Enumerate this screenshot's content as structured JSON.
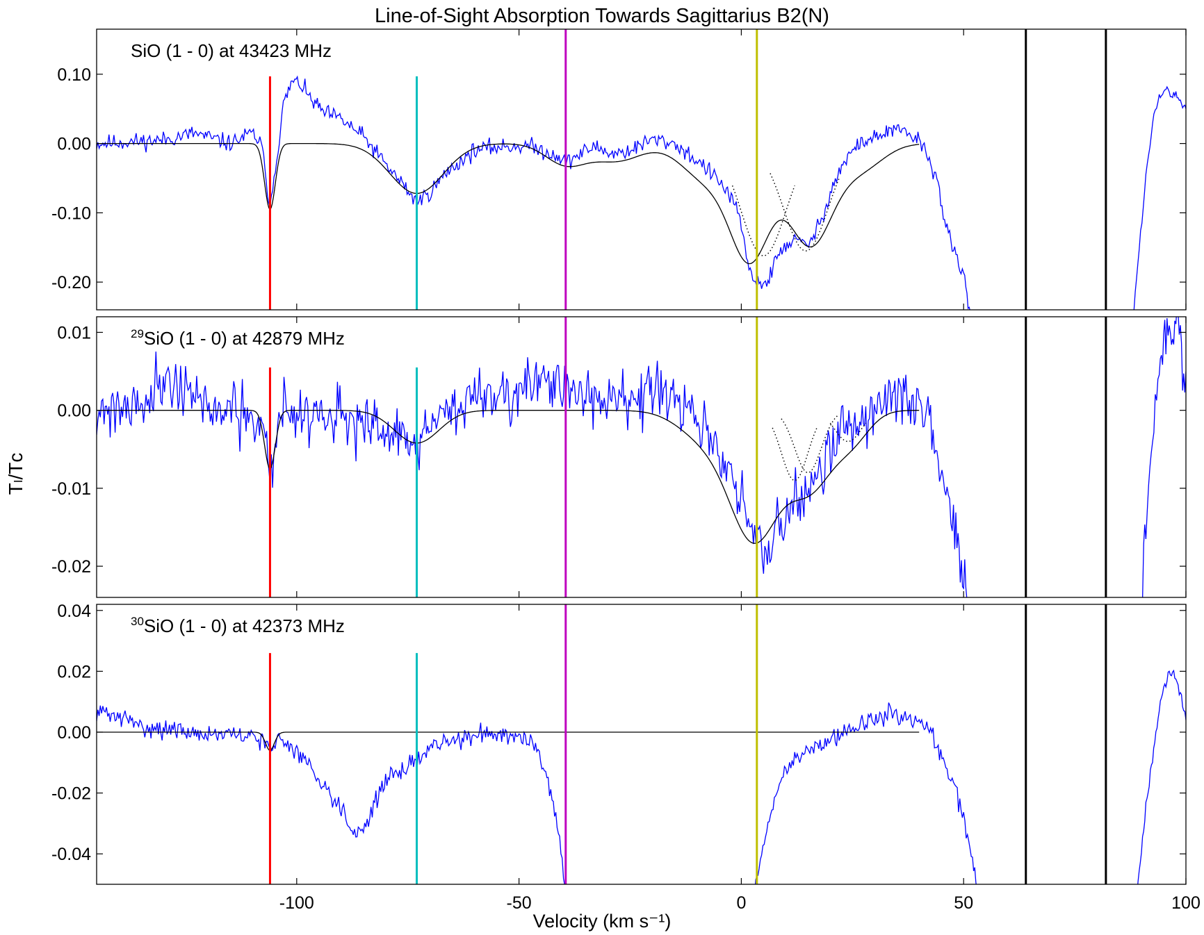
{
  "title": "Line-of-Sight Absorption Towards Sagittarius B2(N)",
  "xlabel": "Velocity (km s⁻¹)",
  "ylabel": "Tₗ/Tᴄ",
  "colors": {
    "spectrum": "#0000ff",
    "fit": "#000000",
    "components": "#000000",
    "marker_red": "#ff0000",
    "marker_cyan": "#00bfbf",
    "marker_magenta": "#bf00bf",
    "marker_yellow": "#bfbf00",
    "marker_black": "#000000"
  },
  "chart_data": {
    "type": "line",
    "xlim": [
      -145,
      100
    ],
    "x_ticks": [
      -100,
      -50,
      0,
      50,
      100
    ],
    "x_tick_labels": [
      "-100",
      "-50",
      "0",
      "50",
      "100"
    ],
    "markers": [
      {
        "x": -106,
        "color": "#ff0000",
        "full_height": false
      },
      {
        "x": -73,
        "color": "#00bfbf",
        "full_height": false
      },
      {
        "x": -39.5,
        "color": "#bf00bf",
        "full_height": true
      },
      {
        "x": 3.5,
        "color": "#bfbf00",
        "full_height": true
      },
      {
        "x": 64,
        "color": "#000000",
        "full_height": true
      },
      {
        "x": 82,
        "color": "#000000",
        "full_height": true
      }
    ],
    "panels": [
      {
        "label": "SiO (1 - 0) at 43423 MHz",
        "ylim": [
          -0.24,
          0.165
        ],
        "y_ticks": [
          0.1,
          0.0,
          -0.1,
          -0.2
        ],
        "y_tick_labels": [
          "0.10",
          "0.00",
          "-0.10",
          "-0.20"
        ],
        "marker_top": 0.097,
        "fit_components": [
          {
            "amp": -0.095,
            "center": -106.0,
            "sigma": 1.2
          },
          {
            "amp": -0.072,
            "center": -73.0,
            "sigma": 6.0
          },
          {
            "amp": -0.03,
            "center": -39.5,
            "sigma": 4.5
          },
          {
            "amp": -0.025,
            "center": -28.0,
            "sigma": 5.5
          },
          {
            "amp": -0.05,
            "center": -8.0,
            "sigma": 5.5
          },
          {
            "amp": -0.16,
            "center": 2.0,
            "sigma": 4.5
          },
          {
            "amp": -0.145,
            "center": 15.5,
            "sigma": 5.0
          },
          {
            "amp": -0.035,
            "center": 27.0,
            "sigma": 5.0
          }
        ],
        "dotted_components": [
          {
            "amp": -0.162,
            "center": 5.0,
            "sigma": 5.0,
            "x_min": -2,
            "x_max": 12
          },
          {
            "amp": -0.155,
            "center": 14.5,
            "sigma": 5.0,
            "x_min": 6.5,
            "x_max": 22
          }
        ],
        "spectrum_segments": [
          {
            "x": [
              -145,
              -130,
              -123,
              -115,
              -110,
              -108,
              -106,
              -104.5,
              -103,
              -101,
              -99,
              -97,
              -94,
              -90,
              -85,
              -80,
              -76,
              -73,
              -70,
              -66,
              -60,
              -55,
              -48,
              -44,
              -41,
              -39.5,
              -37,
              -33,
              -29,
              -25,
              -20,
              -15,
              -11,
              -8,
              -5,
              -2,
              0,
              2,
              4,
              6,
              8,
              10,
              12,
              14,
              16,
              18,
              20,
              22,
              25,
              28,
              31,
              34,
              37,
              40,
              42,
              44,
              46,
              48,
              50,
              51,
              52
            ],
            "y": [
              0.0,
              0.005,
              0.015,
              0.0,
              0.015,
              0.0,
              -0.09,
              -0.02,
              0.055,
              0.09,
              0.085,
              0.065,
              0.045,
              0.035,
              0.01,
              -0.03,
              -0.06,
              -0.085,
              -0.07,
              -0.04,
              -0.01,
              -0.005,
              -0.003,
              -0.012,
              -0.018,
              -0.028,
              -0.018,
              -0.004,
              -0.015,
              -0.01,
              0.006,
              0.0,
              -0.02,
              -0.035,
              -0.055,
              -0.08,
              -0.12,
              -0.19,
              -0.2,
              -0.2,
              -0.165,
              -0.145,
              -0.14,
              -0.145,
              -0.14,
              -0.11,
              -0.07,
              -0.04,
              -0.01,
              0.005,
              0.01,
              0.02,
              0.015,
              0.005,
              -0.02,
              -0.05,
              -0.12,
              -0.16,
              -0.19,
              -0.23,
              -0.26
            ],
            "noise": 0.006,
            "seed": 11
          },
          {
            "x": [
              88,
              89.5,
              91,
              92.5,
              94,
              95,
              96,
              97,
              98,
              99,
              100
            ],
            "y": [
              -0.26,
              -0.15,
              -0.05,
              0.03,
              0.07,
              0.075,
              0.075,
              0.07,
              0.065,
              0.06,
              0.05
            ],
            "noise": 0.004,
            "seed": 12
          }
        ]
      },
      {
        "label_sup": "29",
        "label": "SiO (1 - 0) at 42879 MHz",
        "ylim": [
          -0.024,
          0.012
        ],
        "y_ticks": [
          0.01,
          0.0,
          -0.01,
          -0.02
        ],
        "y_tick_labels": [
          "0.01",
          "0.00",
          "-0.01",
          "-0.02"
        ],
        "marker_top": 0.0055,
        "fit_components": [
          {
            "amp": -0.0075,
            "center": -106.0,
            "sigma": 1.2
          },
          {
            "amp": -0.0042,
            "center": -73.0,
            "sigma": 5.0
          },
          {
            "amp": -0.0035,
            "center": -8.0,
            "sigma": 6.0
          },
          {
            "amp": -0.016,
            "center": 3.0,
            "sigma": 5.5
          },
          {
            "amp": -0.0095,
            "center": 15.5,
            "sigma": 5.0
          },
          {
            "amp": -0.0035,
            "center": 25.0,
            "sigma": 4.0
          }
        ],
        "dotted_components": [
          {
            "amp": -0.009,
            "center": 12.0,
            "sigma": 3.0,
            "x_min": 7,
            "x_max": 17
          },
          {
            "amp": -0.008,
            "center": 15.0,
            "sigma": 3.0,
            "x_min": 9,
            "x_max": 22
          },
          {
            "amp": -0.004,
            "center": 24.0,
            "sigma": 3.0,
            "x_min": 20,
            "x_max": 28
          }
        ],
        "spectrum_segments": [
          {
            "x": [
              -145,
              -135,
              -130,
              -125,
              -120,
              -115,
              -110,
              -107,
              -106,
              -104,
              -100,
              -95,
              -90,
              -85,
              -80,
              -76,
              -73,
              -70,
              -65,
              -60,
              -55,
              -50,
              -45,
              -40,
              -35,
              -30,
              -25,
              -20,
              -15,
              -10,
              -5,
              -2,
              1,
              3,
              5,
              7,
              10,
              13,
              16,
              19,
              22,
              25,
              28,
              31,
              34,
              37,
              40,
              42,
              44,
              46,
              48,
              49,
              50,
              51
            ],
            "y": [
              0.0,
              0.001,
              0.004,
              0.003,
              0.0,
              0.0,
              -0.002,
              -0.002,
              -0.009,
              0.0,
              -0.0005,
              0.0,
              -0.001,
              -0.002,
              -0.003,
              -0.004,
              -0.004,
              -0.002,
              0.0,
              0.002,
              0.002,
              0.003,
              0.003,
              0.003,
              0.002,
              0.001,
              0.002,
              0.002,
              0.001,
              -0.001,
              -0.006,
              -0.009,
              -0.013,
              -0.016,
              -0.019,
              -0.017,
              -0.013,
              -0.011,
              -0.009,
              -0.006,
              -0.003,
              -0.002,
              -0.001,
              0.001,
              0.002,
              0.002,
              0.0,
              -0.002,
              -0.006,
              -0.01,
              -0.015,
              -0.018,
              -0.022,
              -0.024
            ],
            "noise": 0.0018,
            "seed": 21
          },
          {
            "x": [
              90,
              91,
              92.5,
              94,
              95,
              96,
              97,
              98,
              98.5,
              99,
              99.5,
              100
            ],
            "y": [
              -0.024,
              -0.015,
              -0.004,
              0.005,
              0.009,
              0.01,
              0.011,
              0.01,
              0.012,
              0.008,
              0.003,
              0.005
            ],
            "noise": 0.0014,
            "seed": 22
          }
        ]
      },
      {
        "label_sup": "30",
        "label": "SiO (1 - 0) at 42373 MHz",
        "ylim": [
          -0.05,
          0.042
        ],
        "y_ticks": [
          0.04,
          0.02,
          0.0,
          -0.02,
          -0.04
        ],
        "y_tick_labels": [
          "0.04",
          "0.02",
          "0.00",
          "-0.02",
          "-0.04"
        ],
        "marker_top": 0.026,
        "fit_components": [
          {
            "amp": -0.006,
            "center": -106.0,
            "sigma": 1.0
          }
        ],
        "dotted_components": [],
        "spectrum_segments": [
          {
            "x": [
              -145,
              -140,
              -135,
              -125,
              -115,
              -108,
              -106,
              -104,
              -100,
              -95,
              -90,
              -87,
              -85,
              -83,
              -80,
              -76,
              -74,
              -72,
              -70,
              -65,
              -60,
              -55,
              -50,
              -46,
              -44,
              -42,
              -40,
              -39.5
            ],
            "y": [
              0.007,
              0.005,
              0.002,
              0.0,
              -0.001,
              -0.002,
              -0.006,
              -0.002,
              -0.006,
              -0.015,
              -0.025,
              -0.033,
              -0.032,
              -0.025,
              -0.016,
              -0.012,
              -0.01,
              -0.008,
              -0.005,
              -0.003,
              -0.001,
              0.0,
              -0.001,
              -0.005,
              -0.012,
              -0.025,
              -0.045,
              -0.052
            ],
            "noise": 0.0015,
            "seed": 31
          },
          {
            "x": [
              3,
              4,
              6,
              8,
              10,
              14,
              18,
              22,
              26,
              30,
              34,
              38,
              42,
              44,
              46,
              48,
              50,
              52,
              53
            ],
            "y": [
              -0.052,
              -0.045,
              -0.03,
              -0.02,
              -0.012,
              -0.006,
              -0.004,
              -0.001,
              0.002,
              0.004,
              0.006,
              0.004,
              0.002,
              -0.005,
              -0.012,
              -0.018,
              -0.028,
              -0.042,
              -0.052
            ],
            "noise": 0.0015,
            "seed": 32
          },
          {
            "x": [
              89,
              90,
              91,
              92,
              93,
              94,
              95,
              96,
              97,
              98,
              99,
              100
            ],
            "y": [
              -0.052,
              -0.04,
              -0.025,
              -0.013,
              -0.002,
              0.008,
              0.015,
              0.019,
              0.019,
              0.017,
              0.011,
              0.004
            ],
            "noise": 0.001,
            "seed": 33
          }
        ]
      }
    ]
  }
}
